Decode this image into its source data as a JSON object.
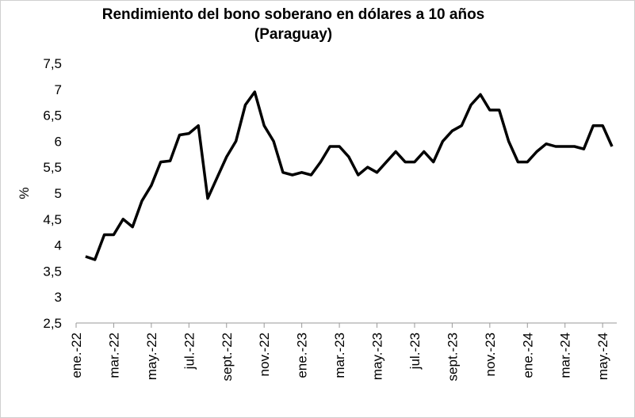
{
  "chart_data": {
    "type": "line",
    "title": [
      "Rendimiento del bono soberano en dólares a 10 años",
      "(Paraguay)"
    ],
    "y_label": "%",
    "categories": [
      "ene.-22",
      null,
      null,
      null,
      "mar.-22",
      null,
      null,
      null,
      "may.-22",
      null,
      null,
      null,
      "jul.-22",
      null,
      null,
      null,
      "sept.-22",
      null,
      null,
      null,
      "nov.-22",
      null,
      null,
      null,
      "ene.-23",
      null,
      null,
      null,
      "mar.-23",
      null,
      null,
      null,
      "may.-23",
      null,
      null,
      null,
      "jul.-23",
      null,
      null,
      null,
      "sept.-23",
      null,
      null,
      null,
      "nov.-23",
      null,
      null,
      null,
      "ene.-24",
      null,
      null,
      null,
      "mar.-24",
      null,
      null,
      null,
      "may.-24",
      null
    ],
    "series": [
      {
        "color": "#000000",
        "values": [
          null,
          3.78,
          3.72,
          4.2,
          4.2,
          4.5,
          4.35,
          4.85,
          5.15,
          5.6,
          5.62,
          6.12,
          6.15,
          6.3,
          4.9,
          5.3,
          5.7,
          6.0,
          6.7,
          6.95,
          6.3,
          6.0,
          5.4,
          5.35,
          5.4,
          5.35,
          5.6,
          5.9,
          5.9,
          5.7,
          5.35,
          5.5,
          5.4,
          5.6,
          5.8,
          5.6,
          5.6,
          5.8,
          5.6,
          6.0,
          6.2,
          6.3,
          6.7,
          6.9,
          6.6,
          6.6,
          6.0,
          5.6,
          5.6,
          5.8,
          5.95,
          5.9,
          5.9,
          5.9,
          5.85,
          6.3,
          6.3,
          5.9
        ]
      }
    ],
    "ylim": [
      2.5,
      7.5
    ],
    "yticks": [
      {
        "value": 2.5,
        "label": "2,5"
      },
      3,
      {
        "value": 3.5,
        "label": "3,5"
      },
      4,
      {
        "value": 4.5,
        "label": "4,5"
      },
      5,
      {
        "value": 5.5,
        "label": "5,5"
      },
      6,
      {
        "value": 6.5,
        "label": "6,5"
      },
      7,
      {
        "value": 7.5,
        "label": "7,5"
      }
    ],
    "grid": false
  }
}
